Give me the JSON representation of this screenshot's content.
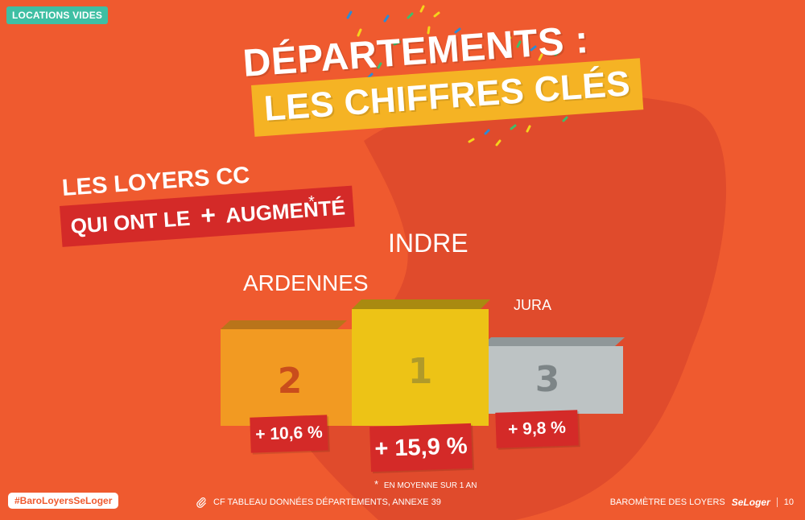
{
  "section_tag": "LOCATIONS VIDES",
  "title": {
    "line1": "DÉPARTEMENTS :",
    "line2": "LES CHIFFRES CLÉS"
  },
  "subtitle": {
    "line1": "LES LOYERS CC",
    "line2_prefix": "QUI ONT LE",
    "line2_symbol": "+",
    "line2_suffix": "AUGMENTÉ",
    "asterisk": "*"
  },
  "podium": {
    "first": {
      "department": "INDRE",
      "rank": "1",
      "value": "+ 15,9 %"
    },
    "second": {
      "department": "ARDENNES",
      "rank": "2",
      "value": "+ 10,6 %"
    },
    "third": {
      "department": "JURA",
      "rank": "3",
      "value": "+ 9,8 %"
    }
  },
  "footnote": {
    "star": "*",
    "text": "EN MOYENNE SUR 1 AN"
  },
  "footer": {
    "hashtag": "#BaroLoyersSeLoger",
    "reference": "CF TABLEAU DONNÉES DÉPARTEMENTS, ANNEXE 39",
    "barometer": "BAROMÈTRE DES LOYERS",
    "brand": "SeLoger",
    "page": "10"
  },
  "colors": {
    "background": "#ef5a2f",
    "accent_red": "#d42a28",
    "accent_yellow": "#f5b324",
    "tag_green": "#3fbfa3",
    "podium_gold": "#edc316",
    "podium_silver": "#bdc3c4",
    "podium_orange": "#f29a22"
  }
}
